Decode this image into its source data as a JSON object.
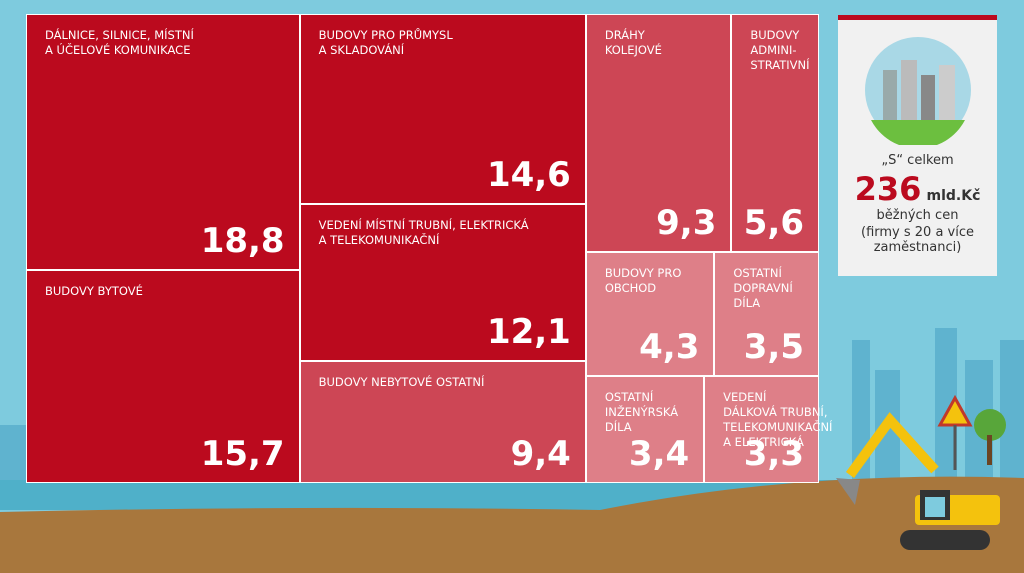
{
  "chart_data": {
    "type": "treemap",
    "categories": [
      "DÁLNICE, SILNICE, MÍSTNÍ\nA ÚČELOVÉ KOMUNIKACE",
      "BUDOVY BYTOVÉ",
      "BUDOVY PRO PRŮMYSL\nA SKLADOVÁNÍ",
      "VEDENÍ MÍSTNÍ TRUBNÍ, ELEKTRICKÁ\nA TELEKOMUNIKAČNÍ",
      "BUDOVY NEBYTOVÉ OSTATNÍ",
      "DRÁHY\nKOLEJOVÉ",
      "BUDOVY\nADMINI-\nSTRATIVNÍ",
      "BUDOVY PRO\nOBCHOD",
      "OSTATNÍ\nDOPRAVNÍ\nDÍLA",
      "OSTATNÍ\nINŽENÝRSKÁ\nDÍLA",
      "VEDENÍ\nDÁLKOVÁ TRUBNÍ,\nTELEKOMUNIKAČNÍ\nA ELEKTRICKÁ"
    ],
    "values": [
      18.8,
      15.7,
      14.6,
      12.1,
      9.4,
      9.3,
      5.6,
      4.3,
      3.5,
      3.4,
      3.3
    ],
    "value_labels": [
      "18,8",
      "15,7",
      "14,6",
      "12,1",
      "9,4",
      "9,3",
      "5,6",
      "4,3",
      "3,5",
      "3,4",
      "3,3"
    ],
    "colors": [
      "#bb0a1e",
      "#bb0a1e",
      "#bb0a1e",
      "#bb0a1e",
      "#cd4655",
      "#cd4655",
      "#cd4655",
      "#de7f88",
      "#de7f88",
      "#de7f88",
      "#de7f88"
    ],
    "summary": {
      "label": "„S“ celkem",
      "total": 236,
      "unit": "mld.Kč",
      "note": "běžných cen",
      "note_2": "(firmy s 20 a více zaměstnanci)"
    }
  }
}
